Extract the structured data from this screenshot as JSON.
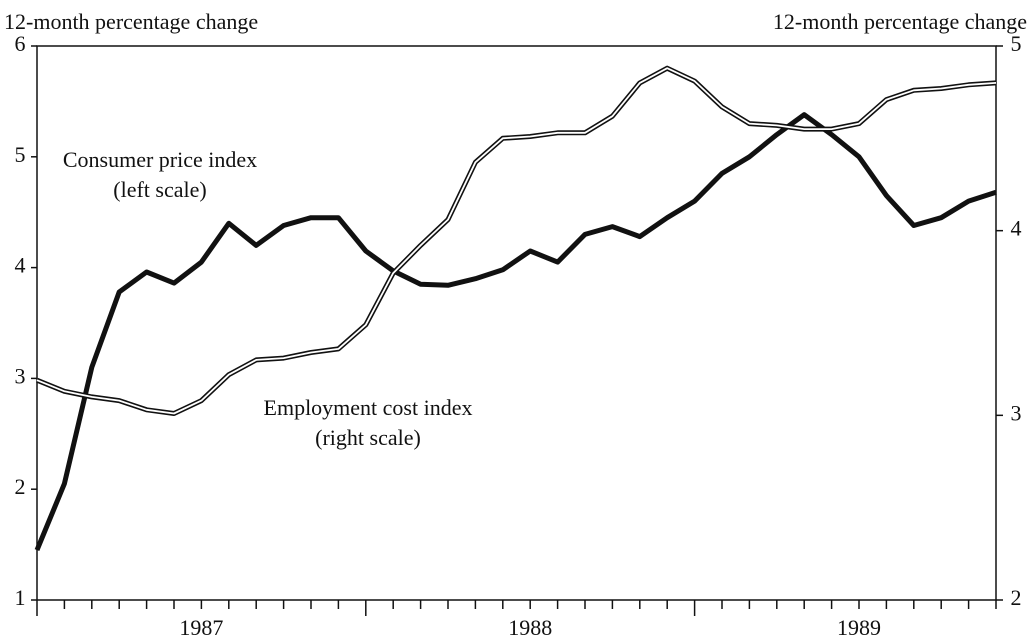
{
  "chart_data": {
    "type": "line",
    "ylabel": "12-month percentage change",
    "y2label": "12-month percentage change",
    "categories": [
      null,
      null,
      null,
      null,
      null,
      null,
      "1987",
      null,
      null,
      null,
      null,
      null,
      null,
      null,
      null,
      null,
      null,
      null,
      "1988",
      null,
      null,
      null,
      null,
      null,
      null,
      null,
      null,
      null,
      null,
      null,
      "1989",
      null,
      null,
      null,
      null,
      null
    ],
    "ylim": [
      1,
      6
    ],
    "yticks": [
      1,
      2,
      3,
      4,
      5,
      6
    ],
    "y2lim": [
      2,
      5
    ],
    "y2ticks": [
      2,
      3,
      4,
      5
    ],
    "series": [
      {
        "name": "Consumer price index",
        "note": "(left scale)",
        "color": "#111111",
        "axis": "y",
        "values": [
          1.45,
          2.05,
          3.1,
          3.78,
          3.96,
          3.86,
          4.05,
          4.4,
          4.2,
          4.38,
          4.45,
          4.45,
          4.15,
          3.97,
          3.85,
          3.84,
          3.9,
          3.98,
          4.15,
          4.05,
          4.3,
          4.37,
          4.28,
          4.45,
          4.6,
          4.85,
          5.0,
          5.2,
          5.38,
          5.2,
          5.0,
          4.65,
          4.38,
          4.45,
          4.6,
          4.68
        ]
      },
      {
        "name": "Employment cost index",
        "note": "(right scale)",
        "color": "#111111",
        "axis": "y2",
        "values": [
          3.19,
          3.13,
          3.1,
          3.08,
          3.03,
          3.01,
          3.08,
          3.22,
          3.3,
          3.31,
          3.34,
          3.36,
          3.49,
          3.77,
          3.92,
          4.06,
          4.37,
          4.5,
          4.51,
          4.53,
          4.53,
          4.62,
          4.8,
          4.88,
          4.81,
          4.67,
          4.58,
          4.57,
          4.55,
          4.55,
          4.58,
          4.71,
          4.76,
          4.77,
          4.79,
          4.8
        ]
      }
    ]
  }
}
